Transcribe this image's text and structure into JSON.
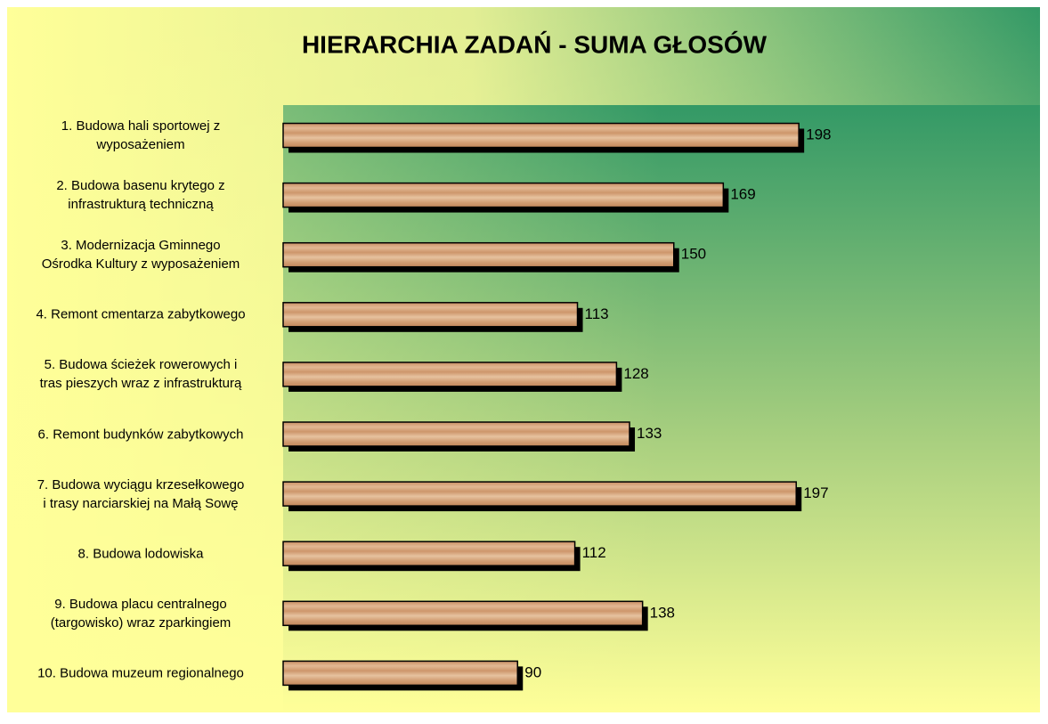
{
  "chart_data": {
    "type": "barh",
    "title": "HIERARCHIA ZADAŃ - SUMA GŁOSÓW",
    "categories": [
      "1. Budowa hali sportowej z\nwyposażeniem",
      "2. Budowa basenu krytego z\ninfrastrukturą techniczną",
      "3. Modernizacja Gminnego\nOśrodka Kultury z wyposażeniem",
      "4. Remont cmentarza zabytkowego",
      "5. Budowa ścieżek rowerowych i\ntras pieszych wraz z infrastrukturą",
      "6. Remont budynków zabytkowych",
      "7. Budowa wyciągu krzesełkowego\ni trasy narciarskiej na Małą Sowę",
      "8. Budowa lodowiska",
      "9. Budowa placu centralnego\n(targowisko) wraz zparkingiem",
      "10. Budowa muzeum regionalnego"
    ],
    "values": [
      198,
      169,
      150,
      113,
      128,
      133,
      197,
      112,
      138,
      90
    ],
    "xlim": [
      0,
      200
    ]
  }
}
